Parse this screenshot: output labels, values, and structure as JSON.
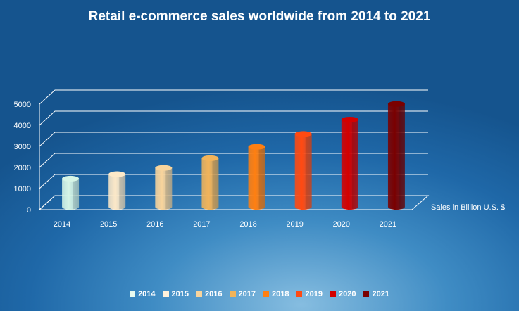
{
  "chart_data": {
    "type": "bar",
    "title": "Retail e-commerce sales worldwide from 2014 to 2021",
    "categories": [
      "2014",
      "2015",
      "2016",
      "2017",
      "2018",
      "2019",
      "2020",
      "2021"
    ],
    "series": [
      {
        "name": "Sales in Billion U.S. $",
        "values": [
          1336,
          1548,
          1845,
          2304,
          2842,
          3453,
          4135,
          4878
        ]
      }
    ],
    "ylim": [
      0,
      5000
    ],
    "yticks": [
      "0",
      "1000",
      "2000",
      "3000",
      "4000",
      "5000"
    ],
    "grid": true,
    "legend_position": "bottom",
    "series_label": "Sales in Billion U.S. $",
    "bar_colors": [
      "#d6f5e6",
      "#fde9c8",
      "#f8d49c",
      "#f2b45a",
      "#ff7f11",
      "#ff4a12",
      "#d40000",
      "#7a0000"
    ],
    "legend": [
      {
        "label": "2014",
        "color": "#e8fbf0"
      },
      {
        "label": "2015",
        "color": "#fff2dc"
      },
      {
        "label": "2016",
        "color": "#f8d49c"
      },
      {
        "label": "2017",
        "color": "#f2b45a"
      },
      {
        "label": "2018",
        "color": "#ff7f11"
      },
      {
        "label": "2019",
        "color": "#ff4a12"
      },
      {
        "label": "2020",
        "color": "#d40000"
      },
      {
        "label": "2021",
        "color": "#7a0000"
      }
    ]
  }
}
